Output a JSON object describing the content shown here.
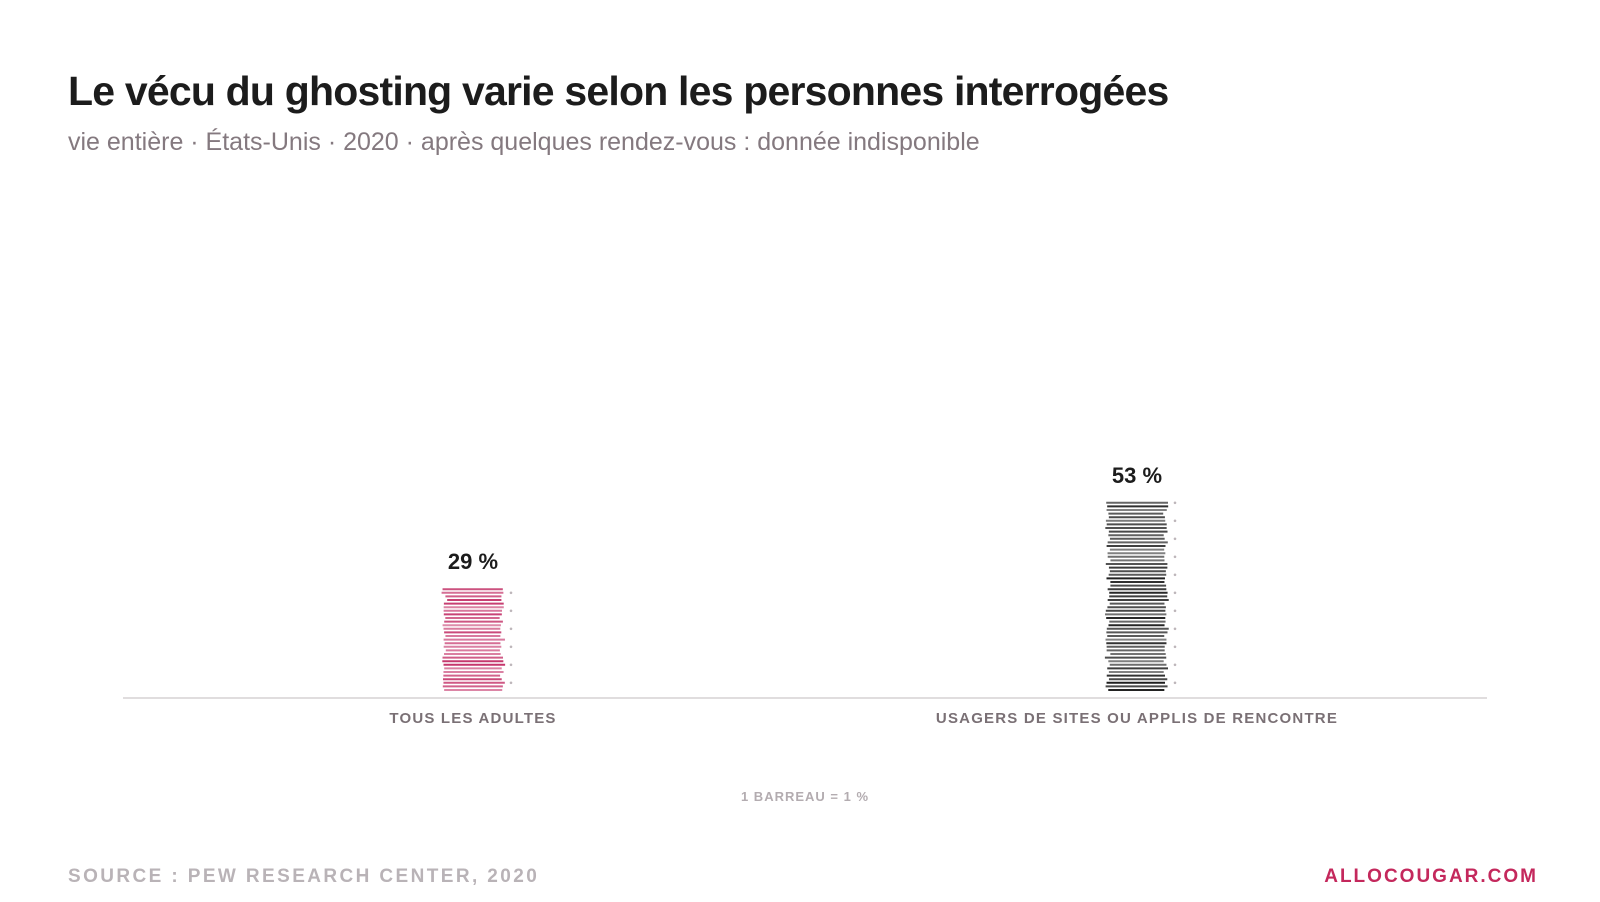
{
  "header": {
    "title": "Le vécu du ghosting varie selon les personnes interrogées",
    "subtitle": "vie entière · États-Unis · 2020 · après quelques rendez-vous : donnée indisponible"
  },
  "footer": {
    "source": "SOURCE : PEW RESEARCH CENTER, 2020",
    "brand": "ALLOCOUGAR.COM"
  },
  "chart_data": {
    "type": "bar",
    "categories": [
      "TOUS LES ADULTES",
      "USAGERS DE SITES OU APPLIS DE RENCONTRE"
    ],
    "values": [
      29,
      53
    ],
    "value_labels": [
      "29 %",
      "53 %"
    ],
    "unit": "%",
    "scale_note": "1 BARREAU = 1 %",
    "colors": [
      "#c4346a",
      "#1e1e1e"
    ],
    "grid": false,
    "legend": "none"
  }
}
